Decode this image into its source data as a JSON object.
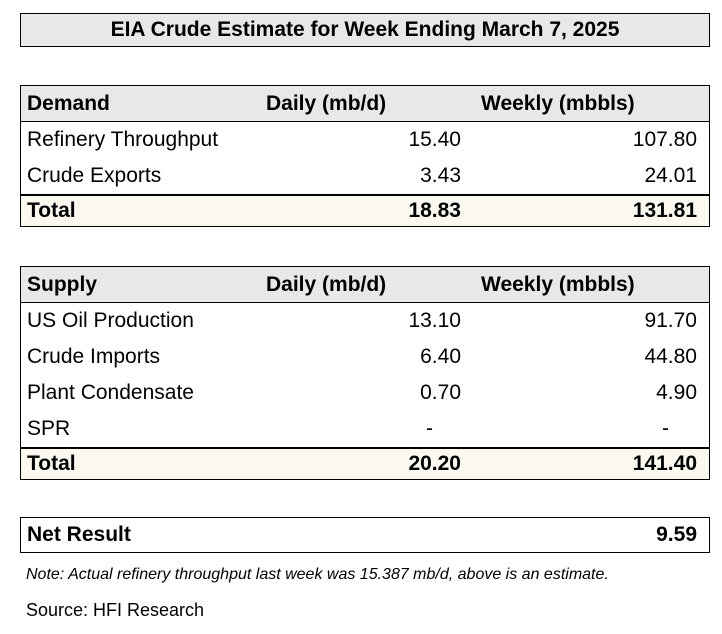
{
  "title": "EIA Crude Estimate for Week Ending March 7, 2025",
  "demand": {
    "header": [
      "Demand",
      "Daily (mb/d)",
      "Weekly (mbbls)"
    ],
    "rows": [
      {
        "label": "Refinery Throughput",
        "daily": "15.40",
        "weekly": "107.80"
      },
      {
        "label": "Crude Exports",
        "daily": "3.43",
        "weekly": "24.01"
      }
    ],
    "total": {
      "label": "Total",
      "daily": "18.83",
      "weekly": "131.81"
    }
  },
  "supply": {
    "header": [
      "Supply",
      "Daily (mb/d)",
      "Weekly (mbbls)"
    ],
    "rows": [
      {
        "label": "US Oil Production",
        "daily": "13.10",
        "weekly": "91.70"
      },
      {
        "label": "Crude Imports",
        "daily": "6.40",
        "weekly": "44.80"
      },
      {
        "label": "Plant Condensate",
        "daily": "0.70",
        "weekly": "4.90"
      },
      {
        "label": "SPR",
        "daily": "-",
        "weekly": "-"
      }
    ],
    "total": {
      "label": "Total",
      "daily": "20.20",
      "weekly": "141.40"
    }
  },
  "net_result": {
    "label": "Net Result",
    "value": "9.59"
  },
  "note": "Note: Actual refinery throughput last week was 15.387 mb/d, above is an estimate.",
  "source": "Source: HFI Research"
}
